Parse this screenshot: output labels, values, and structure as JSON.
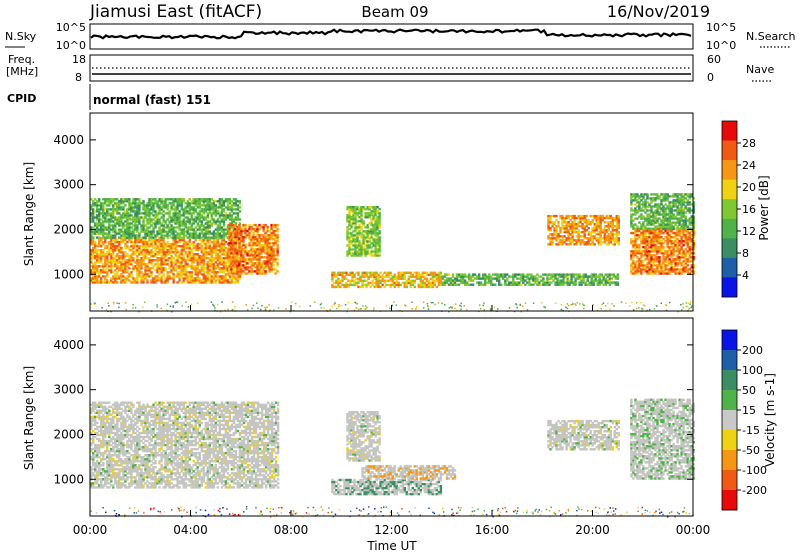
{
  "header": {
    "station": "Jiamusi East (fitACF)",
    "beam": "Beam 09",
    "date": "16/Nov/2019"
  },
  "noise_panel": {
    "left_label": "N.Sky",
    "right_label": "N.Search",
    "left_ticks": [
      "10^5",
      "10^0"
    ],
    "right_ticks": [
      "10^5",
      "10^0"
    ]
  },
  "freq_panel": {
    "left_label_1": "Freq.",
    "left_label_2": "[MHz]",
    "left_ticks": [
      "18",
      "8"
    ],
    "right_label": "Nave",
    "right_ticks": [
      "60",
      "0"
    ]
  },
  "cpid": {
    "label": "CPID",
    "value": "normal (fast) 151"
  },
  "axes": {
    "ylabel": "Slant Range [km]",
    "xlabel": "Time UT",
    "y_ticks": [
      "1000",
      "2000",
      "3000",
      "4000"
    ],
    "x_ticks": [
      "00:00",
      "04:00",
      "08:00",
      "12:00",
      "16:00",
      "20:00",
      "00:00"
    ]
  },
  "colors": {
    "power_scale": [
      "#0a14e6",
      "#1e5fa8",
      "#3c8c64",
      "#4fb24a",
      "#7fc832",
      "#f0d214",
      "#f59614",
      "#f05a14",
      "#e60a0a"
    ],
    "velocity_scale": [
      "#e60a0a",
      "#f05a14",
      "#f59614",
      "#f0d214",
      "#c8c8c8",
      "#4fb24a",
      "#3c8c64",
      "#1e5fa8",
      "#0a14e6"
    ],
    "gray": "#c4c4c0"
  },
  "chart_data": [
    {
      "type": "heatmap",
      "title": "Power",
      "xlabel": "Time UT",
      "ylabel": "Slant Range [km]",
      "xlim": [
        0,
        24
      ],
      "ylim": [
        180,
        4600
      ],
      "colorbar": {
        "label": "Power [dB]",
        "ticks": [
          "4",
          "8",
          "12",
          "16",
          "20",
          "24",
          "28"
        ],
        "range": [
          0,
          30
        ]
      },
      "regions": [
        {
          "t": [
            0.0,
            6.0
          ],
          "r": [
            800,
            1800
          ],
          "value": 22
        },
        {
          "t": [
            0.0,
            6.0
          ],
          "r": [
            1800,
            2700
          ],
          "value": 12
        },
        {
          "t": [
            5.5,
            7.5
          ],
          "r": [
            1000,
            2100
          ],
          "value": 24
        },
        {
          "t": [
            9.6,
            14.0
          ],
          "r": [
            700,
            1050
          ],
          "value": 20
        },
        {
          "t": [
            10.2,
            11.5
          ],
          "r": [
            1400,
            2500
          ],
          "value": 14
        },
        {
          "t": [
            14.0,
            21.0
          ],
          "r": [
            750,
            1000
          ],
          "value": 12
        },
        {
          "t": [
            18.2,
            21.0
          ],
          "r": [
            1650,
            2300
          ],
          "value": 22
        },
        {
          "t": [
            21.5,
            24.0
          ],
          "r": [
            1000,
            2000
          ],
          "value": 24
        },
        {
          "t": [
            21.5,
            24.0
          ],
          "r": [
            2000,
            2800
          ],
          "value": 12
        }
      ]
    },
    {
      "type": "heatmap",
      "title": "Velocity",
      "xlabel": "Time UT",
      "ylabel": "Slant Range [km]",
      "xlim": [
        0,
        24
      ],
      "ylim": [
        180,
        4600
      ],
      "colorbar": {
        "label": "Velocity [m s-1]",
        "ticks": [
          "200",
          "100",
          "50",
          "15",
          "-15",
          "-50",
          "-100",
          "-200"
        ]
      },
      "regions": [
        {
          "t": [
            0.0,
            7.5
          ],
          "r": [
            800,
            2700
          ],
          "value": 0
        },
        {
          "t": [
            9.6,
            14.0
          ],
          "r": [
            650,
            1000
          ],
          "value": 50
        },
        {
          "t": [
            10.8,
            14.5
          ],
          "r": [
            1000,
            1300
          ],
          "value": -50
        },
        {
          "t": [
            10.2,
            11.5
          ],
          "r": [
            1400,
            2500
          ],
          "value": 0
        },
        {
          "t": [
            18.2,
            21.0
          ],
          "r": [
            1650,
            2300
          ],
          "value": 0
        },
        {
          "t": [
            21.5,
            24.0
          ],
          "r": [
            1000,
            2800
          ],
          "value": 15
        }
      ]
    }
  ]
}
